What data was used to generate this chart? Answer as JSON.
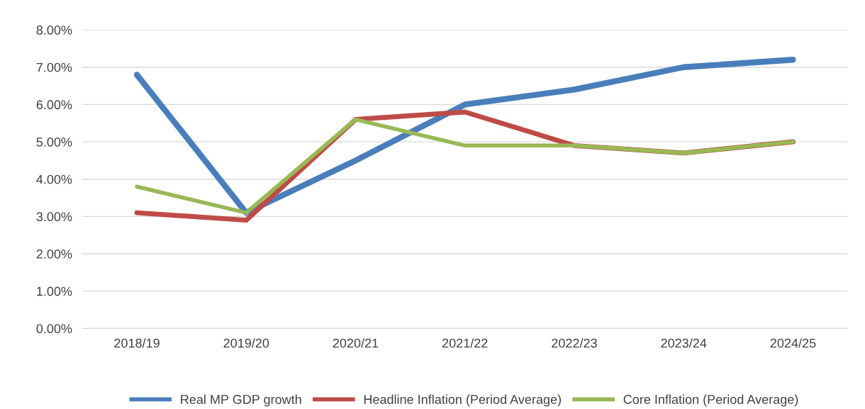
{
  "chart_data": {
    "type": "line",
    "categories": [
      "2018/19",
      "2019/20",
      "2020/21",
      "2021/22",
      "2022/23",
      "2023/24",
      "2024/25"
    ],
    "series": [
      {
        "name": "Real MP GDP growth",
        "color": "#4a7ebb",
        "values": [
          6.8,
          3.1,
          4.5,
          6.0,
          6.4,
          7.0,
          7.2
        ]
      },
      {
        "name": "Headline Inflation (Period Average)",
        "color": "#be4b48",
        "values": [
          3.1,
          2.9,
          5.6,
          5.8,
          4.9,
          4.7,
          5.0
        ]
      },
      {
        "name": "Core Inflation (Period Average)",
        "color": "#98b954",
        "values": [
          3.8,
          3.1,
          5.6,
          4.9,
          4.9,
          4.7,
          5.0
        ]
      }
    ],
    "ylim": [
      0,
      8
    ],
    "yticks": [
      {
        "value": 0,
        "label": "0.00%"
      },
      {
        "value": 1,
        "label": "1.00%"
      },
      {
        "value": 2,
        "label": "2.00%"
      },
      {
        "value": 3,
        "label": "3.00%"
      },
      {
        "value": 4,
        "label": "4.00%"
      },
      {
        "value": 5,
        "label": "5.00%"
      },
      {
        "value": 6,
        "label": "6.00%"
      },
      {
        "value": 7,
        "label": "7.00%"
      },
      {
        "value": 8,
        "label": "8.00%"
      }
    ],
    "grid": "y",
    "legend": "bottom",
    "marker": "none",
    "line_style": "solid"
  }
}
